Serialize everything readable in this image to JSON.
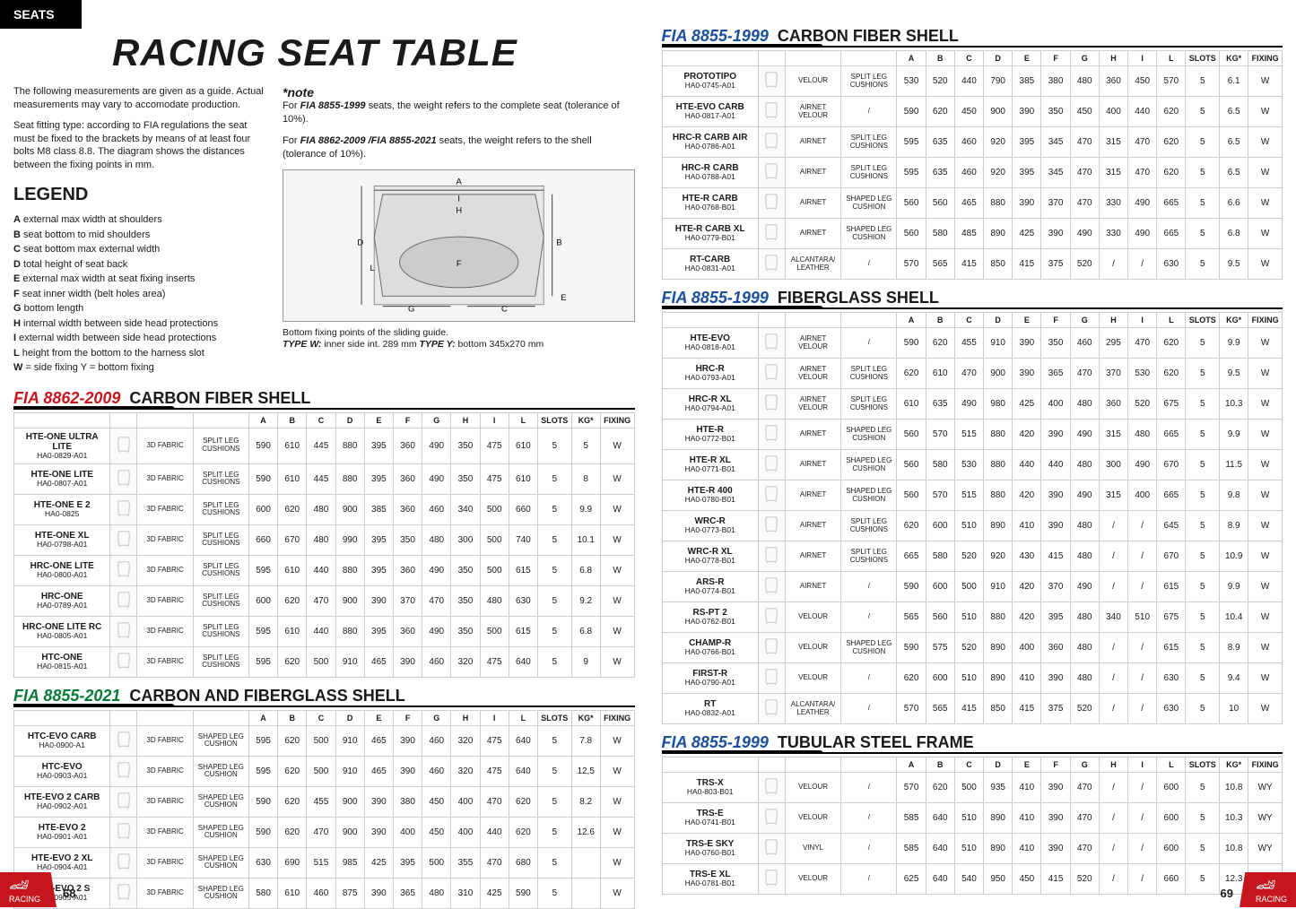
{
  "tab": "SEATS",
  "title": "RACING SEAT TABLE",
  "intro1": "The following measurements are given as a guide. Actual measurements may vary to accomodate production.",
  "intro2": "Seat fitting type: according to FIA regulations the seat must be fixed to the brackets by means of at least four bolts M8 class 8.8. The diagram shows the distances between the fixing points in mm.",
  "legendTitle": "LEGEND",
  "legend": [
    {
      "k": "A",
      "v": "external max width at shoulders"
    },
    {
      "k": "B",
      "v": "seat bottom to mid shoulders"
    },
    {
      "k": "C",
      "v": "seat bottom max external width"
    },
    {
      "k": "D",
      "v": "total height of seat back"
    },
    {
      "k": "E",
      "v": "external max width at seat fixing inserts"
    },
    {
      "k": "F",
      "v": "seat inner width (belt holes area)"
    },
    {
      "k": "G",
      "v": "bottom length"
    },
    {
      "k": "H",
      "v": "internal width between side head protections"
    },
    {
      "k": "I",
      "v": " external width between side head protections"
    },
    {
      "k": "L",
      "v": "height from the bottom to the harness slot"
    },
    {
      "k": "W",
      "v": "= side fixing   Y = bottom fixing"
    }
  ],
  "noteTitle": "*note",
  "note1a": "For ",
  "note1b": "FIA 8855-1999",
  "note1c": " seats, the weight refers to the complete seat (tolerance of 10%).",
  "note2a": "For ",
  "note2b": "FIA 8862-2009 /FIA 8855-2021",
  "note2c": " seats, the weight refers to the shell (tolerance of 10%).",
  "diagCaption1": "Bottom fixing points of the sliding guide.",
  "diagCaption2a": "TYPE W:",
  "diagCaption2b": " inner side int. 289 mm ",
  "diagCaption2c": "TYPE Y:",
  "diagCaption2d": " bottom 345x270 mm",
  "headers": [
    "A",
    "B",
    "C",
    "D",
    "E",
    "F",
    "G",
    "H",
    "I",
    "L",
    "SLOTS",
    "KG*",
    "FIXING"
  ],
  "sections": [
    {
      "fia": "FIA 8862-2009",
      "fiaClass": "red",
      "shell": "CARBON FIBER SHELL",
      "rows": [
        {
          "name": "HTE-ONE ULTRA LITE",
          "code": "HA0-0829-A01",
          "mat": "3D FABRIC",
          "cush": "SPLIT LEG CUSHIONS",
          "d": [
            "590",
            "610",
            "445",
            "880",
            "395",
            "360",
            "490",
            "350",
            "475",
            "610",
            "5",
            "5",
            "W"
          ]
        },
        {
          "name": "HTE-ONE LITE",
          "code": "HA0-0807-A01",
          "mat": "3D FABRIC",
          "cush": "SPLIT LEG CUSHIONS",
          "d": [
            "590",
            "610",
            "445",
            "880",
            "395",
            "360",
            "490",
            "350",
            "475",
            "610",
            "5",
            "8",
            "W"
          ]
        },
        {
          "name": "HTE-ONE E 2",
          "code": "HA0-0825",
          "mat": "3D FABRIC",
          "cush": "SPLIT LEG CUSHIONS",
          "d": [
            "600",
            "620",
            "480",
            "900",
            "385",
            "360",
            "460",
            "340",
            "500",
            "660",
            "5",
            "9.9",
            "W"
          ]
        },
        {
          "name": "HTE-ONE XL",
          "code": "HA0-0798-A01",
          "mat": "3D FABRIC",
          "cush": "SPLIT LEG CUSHIONS",
          "d": [
            "660",
            "670",
            "480",
            "990",
            "395",
            "350",
            "480",
            "300",
            "500",
            "740",
            "5",
            "10.1",
            "W"
          ]
        },
        {
          "name": "HRC-ONE LITE",
          "code": "HA0-0800-A01",
          "mat": "3D FABRIC",
          "cush": "SPLIT LEG CUSHIONS",
          "d": [
            "595",
            "610",
            "440",
            "880",
            "395",
            "360",
            "490",
            "350",
            "500",
            "615",
            "5",
            "6.8",
            "W"
          ]
        },
        {
          "name": "HRC-ONE",
          "code": "HA0-0789-A01",
          "mat": "3D FABRIC",
          "cush": "SPLIT LEG CUSHIONS",
          "d": [
            "600",
            "620",
            "470",
            "900",
            "390",
            "370",
            "470",
            "350",
            "480",
            "630",
            "5",
            "9.2",
            "W"
          ]
        },
        {
          "name": "HRC-ONE LITE RC",
          "code": "HA0-0805-A01",
          "mat": "3D FABRIC",
          "cush": "SPLIT LEG CUSHIONS",
          "d": [
            "595",
            "610",
            "440",
            "880",
            "395",
            "360",
            "490",
            "350",
            "500",
            "615",
            "5",
            "6.8",
            "W"
          ]
        },
        {
          "name": "HTC-ONE",
          "code": "HA0-0815-A01",
          "mat": "3D FABRIC",
          "cush": "SPLIT LEG CUSHIONS",
          "d": [
            "595",
            "620",
            "500",
            "910",
            "465",
            "390",
            "460",
            "320",
            "475",
            "640",
            "5",
            "9",
            "W"
          ]
        }
      ]
    },
    {
      "fia": "FIA 8855-2021",
      "fiaClass": "green",
      "shell": "CARBON AND FIBERGLASS SHELL",
      "rows": [
        {
          "name": "HTC-EVO CARB",
          "code": "HA0-0900-A1",
          "mat": "3D FABRIC",
          "cush": "SHAPED LEG CUSHION",
          "d": [
            "595",
            "620",
            "500",
            "910",
            "465",
            "390",
            "460",
            "320",
            "475",
            "640",
            "5",
            "7.8",
            "W"
          ]
        },
        {
          "name": "HTC-EVO",
          "code": "HA0-0903-A01",
          "mat": "3D FABRIC",
          "cush": "SHAPED LEG CUSHION",
          "d": [
            "595",
            "620",
            "500",
            "910",
            "465",
            "390",
            "460",
            "320",
            "475",
            "640",
            "5",
            "12,5",
            "W"
          ]
        },
        {
          "name": "HTE-EVO 2 CARB",
          "code": "HA0-0902-A01",
          "mat": "3D FABRIC",
          "cush": "SHAPED LEG CUSHION",
          "d": [
            "590",
            "620",
            "455",
            "900",
            "390",
            "380",
            "450",
            "400",
            "470",
            "620",
            "5",
            "8.2",
            "W"
          ]
        },
        {
          "name": "HTE-EVO 2",
          "code": "HA0-0901-A01",
          "mat": "3D FABRIC",
          "cush": "SHAPED LEG CUSHION",
          "d": [
            "590",
            "620",
            "470",
            "900",
            "390",
            "400",
            "450",
            "400",
            "440",
            "620",
            "5",
            "12.6",
            "W"
          ]
        },
        {
          "name": "HTE-EVO 2 XL",
          "code": "HA0-0904-A01",
          "mat": "3D FABRIC",
          "cush": "SHAPED LEG CUSHION",
          "d": [
            "630",
            "690",
            "515",
            "985",
            "425",
            "395",
            "500",
            "355",
            "470",
            "680",
            "5",
            "",
            "W"
          ]
        },
        {
          "name": "HTE-EVO 2 S",
          "code": "HA0-0905-A01",
          "mat": "3D FABRIC",
          "cush": "SHAPED LEG CUSHION",
          "d": [
            "580",
            "610",
            "460",
            "875",
            "390",
            "365",
            "480",
            "310",
            "425",
            "590",
            "5",
            "",
            "W"
          ]
        }
      ]
    }
  ],
  "sectionsRight": [
    {
      "fia": "FIA 8855-1999",
      "fiaClass": "blue",
      "shell": "CARBON FIBER SHELL",
      "rows": [
        {
          "name": "PROTOTIPO",
          "code": "HA0-0745-A01",
          "mat": "VELOUR",
          "cush": "SPLIT LEG CUSHIONS",
          "d": [
            "530",
            "520",
            "440",
            "790",
            "385",
            "380",
            "480",
            "360",
            "450",
            "570",
            "5",
            "6.1",
            "W"
          ]
        },
        {
          "name": "HTE-EVO CARB",
          "code": "HA0-0817-A01",
          "mat": "AIRNET VELOUR",
          "cush": "/",
          "d": [
            "590",
            "620",
            "450",
            "900",
            "390",
            "350",
            "450",
            "400",
            "440",
            "620",
            "5",
            "6.5",
            "W"
          ]
        },
        {
          "name": "HRC-R CARB AIR",
          "code": "HA0-0786-A01",
          "mat": "AIRNET",
          "cush": "SPLIT LEG CUSHIONS",
          "d": [
            "595",
            "635",
            "460",
            "920",
            "395",
            "345",
            "470",
            "315",
            "470",
            "620",
            "5",
            "6.5",
            "W"
          ]
        },
        {
          "name": "HRC-R CARB",
          "code": "HA0-0788-A01",
          "mat": "AIRNET",
          "cush": "SPLIT LEG CUSHIONS",
          "d": [
            "595",
            "635",
            "460",
            "920",
            "395",
            "345",
            "470",
            "315",
            "470",
            "620",
            "5",
            "6.5",
            "W"
          ]
        },
        {
          "name": "HTE-R CARB",
          "code": "HA0-0768-B01",
          "mat": "AIRNET",
          "cush": "SHAPED LEG CUSHION",
          "d": [
            "560",
            "560",
            "465",
            "880",
            "390",
            "370",
            "470",
            "330",
            "490",
            "665",
            "5",
            "6.6",
            "W"
          ]
        },
        {
          "name": "HTE-R CARB XL",
          "code": "HA0-0779-B01",
          "mat": "AIRNET",
          "cush": "SHAPED LEG CUSHION",
          "d": [
            "560",
            "580",
            "485",
            "890",
            "425",
            "390",
            "490",
            "330",
            "490",
            "665",
            "5",
            "6.8",
            "W"
          ]
        },
        {
          "name": "RT-CARB",
          "code": "HA0-0831-A01",
          "mat": "ALCANTARA/ LEATHER",
          "cush": "/",
          "d": [
            "570",
            "565",
            "415",
            "850",
            "415",
            "375",
            "520",
            "/",
            "/",
            "630",
            "5",
            "9.5",
            "W"
          ]
        }
      ]
    },
    {
      "fia": "FIA 8855-1999",
      "fiaClass": "blue",
      "shell": "FIBERGLASS SHELL",
      "rows": [
        {
          "name": "HTE-EVO",
          "code": "HA0-0818-A01",
          "mat": "AIRNET VELOUR",
          "cush": "/",
          "d": [
            "590",
            "620",
            "455",
            "910",
            "390",
            "350",
            "460",
            "295",
            "470",
            "620",
            "5",
            "9.9",
            "W"
          ]
        },
        {
          "name": "HRC-R",
          "code": "HA0-0793-A01",
          "mat": "AIRNET VELOUR",
          "cush": "SPLIT LEG CUSHIONS",
          "d": [
            "620",
            "610",
            "470",
            "900",
            "390",
            "365",
            "470",
            "370",
            "530",
            "620",
            "5",
            "9.5",
            "W"
          ]
        },
        {
          "name": "HRC-R XL",
          "code": "HA0-0794-A01",
          "mat": "AIRNET VELOUR",
          "cush": "SPLIT LEG CUSHIONS",
          "d": [
            "610",
            "635",
            "490",
            "980",
            "425",
            "400",
            "480",
            "360",
            "520",
            "675",
            "5",
            "10.3",
            "W"
          ]
        },
        {
          "name": "HTE-R",
          "code": "HA0-0772-B01",
          "mat": "AIRNET",
          "cush": "SHAPED LEG CUSHION",
          "d": [
            "560",
            "570",
            "515",
            "880",
            "420",
            "390",
            "490",
            "315",
            "480",
            "665",
            "5",
            "9.9",
            "W"
          ]
        },
        {
          "name": "HTE-R XL",
          "code": "HA0-0771-B01",
          "mat": "AIRNET",
          "cush": "SHAPED LEG CUSHION",
          "d": [
            "560",
            "580",
            "530",
            "880",
            "440",
            "440",
            "480",
            "300",
            "490",
            "670",
            "5",
            "11.5",
            "W"
          ]
        },
        {
          "name": "HTE-R 400",
          "code": "HA0-0780-B01",
          "mat": "AIRNET",
          "cush": "SHAPED LEG CUSHION",
          "d": [
            "560",
            "570",
            "515",
            "880",
            "420",
            "390",
            "490",
            "315",
            "400",
            "665",
            "5",
            "9.8",
            "W"
          ]
        },
        {
          "name": "WRC-R",
          "code": "HA0-0773-B01",
          "mat": "AIRNET",
          "cush": "SPLIT LEG CUSHIONS",
          "d": [
            "620",
            "600",
            "510",
            "890",
            "410",
            "390",
            "480",
            "/",
            "/",
            "645",
            "5",
            "8.9",
            "W"
          ]
        },
        {
          "name": "WRC-R XL",
          "code": "HA0-0778-B01",
          "mat": "AIRNET",
          "cush": "SPLIT LEG CUSHIONS",
          "d": [
            "665",
            "580",
            "520",
            "920",
            "430",
            "415",
            "480",
            "/",
            "/",
            "670",
            "5",
            "10.9",
            "W"
          ]
        },
        {
          "name": "ARS-R",
          "code": "HA0-0774-B01",
          "mat": "AIRNET",
          "cush": "/",
          "d": [
            "590",
            "600",
            "500",
            "910",
            "420",
            "370",
            "490",
            "/",
            "/",
            "615",
            "5",
            "9.9",
            "W"
          ]
        },
        {
          "name": "RS-PT 2",
          "code": "HA0-0762-B01",
          "mat": "VELOUR",
          "cush": "/",
          "d": [
            "565",
            "560",
            "510",
            "880",
            "420",
            "395",
            "480",
            "340",
            "510",
            "675",
            "5",
            "10.4",
            "W"
          ]
        },
        {
          "name": "CHAMP-R",
          "code": "HA0-0766-B01",
          "mat": "VELOUR",
          "cush": "SHAPED LEG CUSHION",
          "d": [
            "590",
            "575",
            "520",
            "890",
            "400",
            "360",
            "480",
            "/",
            "/",
            "615",
            "5",
            "8.9",
            "W"
          ]
        },
        {
          "name": "FIRST-R",
          "code": "HA0-0790-A01",
          "mat": "VELOUR",
          "cush": "/",
          "d": [
            "620",
            "600",
            "510",
            "890",
            "410",
            "390",
            "480",
            "/",
            "/",
            "630",
            "5",
            "9.4",
            "W"
          ]
        },
        {
          "name": "RT",
          "code": "HA0-0832-A01",
          "mat": "ALCANTARA/ LEATHER",
          "cush": "/",
          "d": [
            "570",
            "565",
            "415",
            "850",
            "415",
            "375",
            "520",
            "/",
            "/",
            "630",
            "5",
            "10",
            "W"
          ]
        }
      ]
    },
    {
      "fia": "FIA 8855-1999",
      "fiaClass": "blue",
      "shell": "TUBULAR STEEL FRAME",
      "rows": [
        {
          "name": "TRS-X",
          "code": "HA0-803-B01",
          "mat": "VELOUR",
          "cush": "/",
          "d": [
            "570",
            "620",
            "500",
            "935",
            "410",
            "390",
            "470",
            "/",
            "/",
            "600",
            "5",
            "10.8",
            "WY"
          ]
        },
        {
          "name": "TRS-E",
          "code": "HA0-0741-B01",
          "mat": "VELOUR",
          "cush": "/",
          "d": [
            "585",
            "640",
            "510",
            "890",
            "410",
            "390",
            "470",
            "/",
            "/",
            "600",
            "5",
            "10.3",
            "WY"
          ]
        },
        {
          "name": "TRS-E SKY",
          "code": "HA0-0760-B01",
          "mat": "VINYL",
          "cush": "/",
          "d": [
            "585",
            "640",
            "510",
            "890",
            "410",
            "390",
            "470",
            "/",
            "/",
            "600",
            "5",
            "10.8",
            "WY"
          ]
        },
        {
          "name": "TRS-E XL",
          "code": "HA0-0781-B01",
          "mat": "VELOUR",
          "cush": "/",
          "d": [
            "625",
            "640",
            "540",
            "950",
            "450",
            "415",
            "520",
            "/",
            "/",
            "660",
            "5",
            "12.3",
            "W"
          ]
        }
      ]
    }
  ],
  "pageLeft": "68",
  "pageRight": "69",
  "racing": "RACING"
}
